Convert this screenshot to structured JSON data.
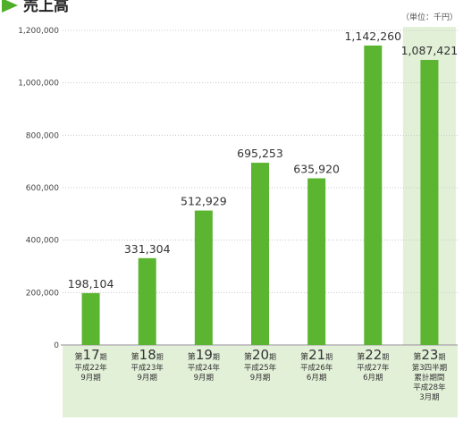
{
  "title": "売上高",
  "unit_note": "（単位：千円）",
  "colors": {
    "bar": "#5cb531",
    "bar_dark": "#4a9e24",
    "band": "#e3f0d8",
    "label_text": "#333333",
    "grid": "#c8c8c8",
    "title_marker": "#4fae2a"
  },
  "chart_data": {
    "type": "bar",
    "title": "売上高",
    "xlabel": "",
    "ylabel": "",
    "unit": "千円",
    "ylim": [
      0,
      1200000
    ],
    "yticks": [
      "0",
      "200,000",
      "400,000",
      "600,000",
      "800,000",
      "1,000,000",
      "1,200,000"
    ],
    "ytick_values": [
      0,
      200000,
      400000,
      600000,
      800000,
      1000000,
      1200000
    ],
    "grid": true,
    "categories": [
      {
        "period_prefix": "第",
        "period_num": "17",
        "period_suffix": "期",
        "lines": [
          "平成22年",
          "9月期"
        ]
      },
      {
        "period_prefix": "第",
        "period_num": "18",
        "period_suffix": "期",
        "lines": [
          "平成23年",
          "9月期"
        ]
      },
      {
        "period_prefix": "第",
        "period_num": "19",
        "period_suffix": "期",
        "lines": [
          "平成24年",
          "9月期"
        ]
      },
      {
        "period_prefix": "第",
        "period_num": "20",
        "period_suffix": "期",
        "lines": [
          "平成25年",
          "9月期"
        ]
      },
      {
        "period_prefix": "第",
        "period_num": "21",
        "period_suffix": "期",
        "lines": [
          "平成26年",
          "6月期"
        ]
      },
      {
        "period_prefix": "第",
        "period_num": "22",
        "period_suffix": "期",
        "lines": [
          "平成27年",
          "6月期"
        ]
      },
      {
        "period_prefix": "第",
        "period_num": "23",
        "period_suffix": "期",
        "lines": [
          "第3四半期",
          "累計期間",
          "平成28年",
          "3月期"
        ]
      }
    ],
    "values": [
      198104,
      331304,
      512929,
      695253,
      635920,
      1142260,
      1087421
    ],
    "value_labels": [
      "198,104",
      "331,304",
      "512,929",
      "695,253",
      "635,920",
      "1,142,260",
      "1,087,421"
    ],
    "highlight_last": true
  }
}
